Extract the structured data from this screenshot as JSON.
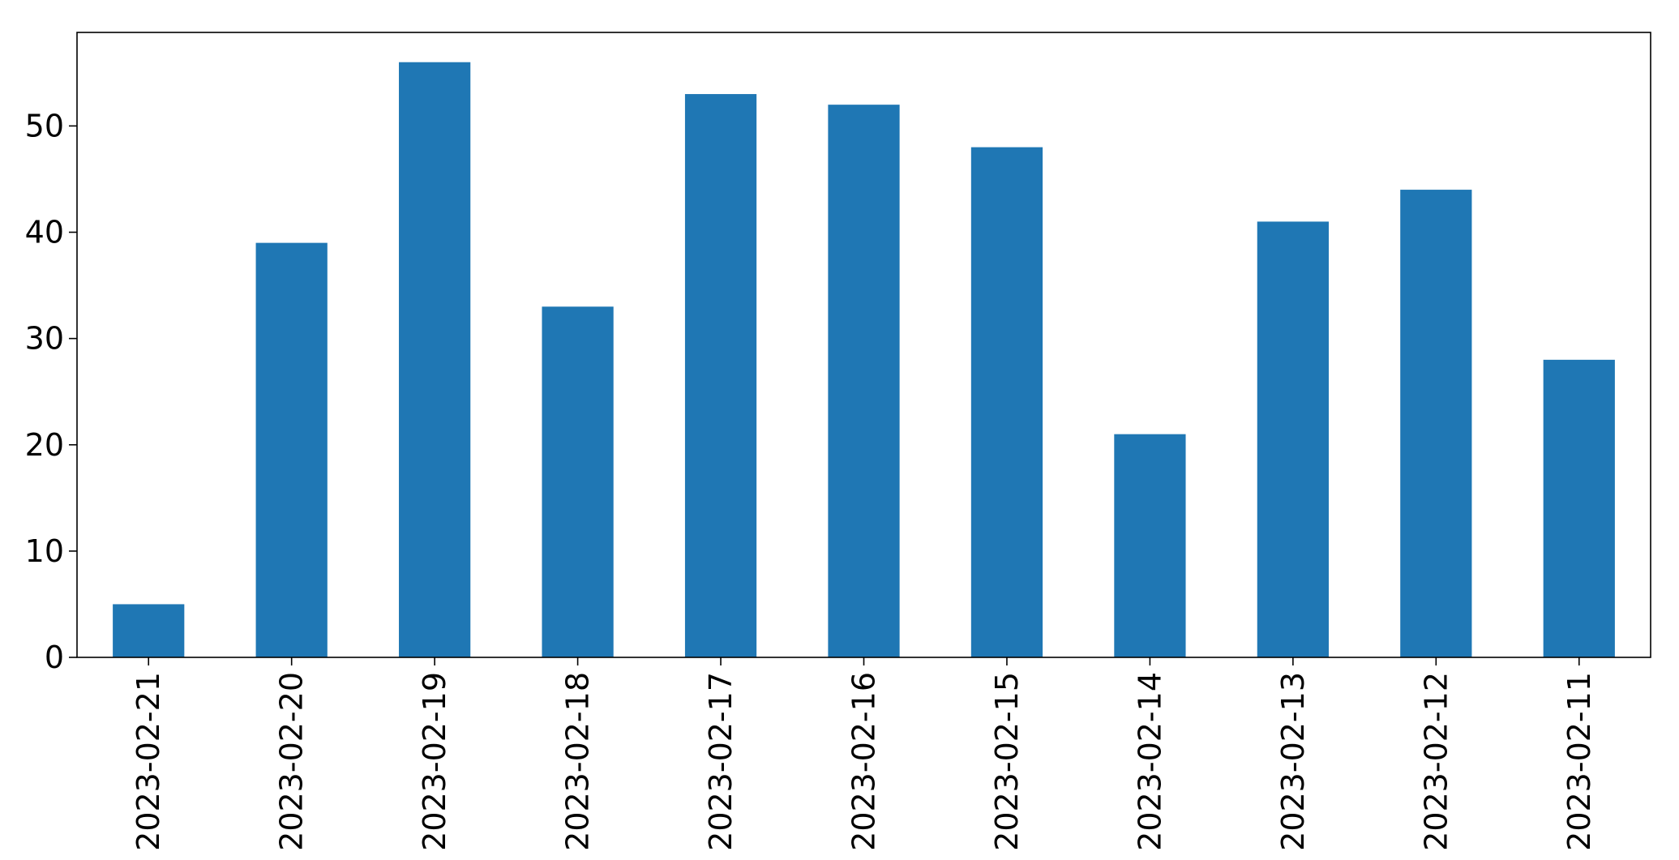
{
  "chart_data": {
    "type": "bar",
    "categories": [
      "2023-02-21",
      "2023-02-20",
      "2023-02-19",
      "2023-02-18",
      "2023-02-17",
      "2023-02-16",
      "2023-02-15",
      "2023-02-14",
      "2023-02-13",
      "2023-02-12",
      "2023-02-11"
    ],
    "values": [
      5,
      39,
      56,
      33,
      53,
      52,
      48,
      21,
      41,
      44,
      28
    ],
    "title": "",
    "xlabel": "",
    "ylabel": "",
    "ylim": [
      0,
      58.8
    ],
    "yticks": [
      0,
      10,
      20,
      30,
      40,
      50
    ],
    "grid": false,
    "legend": "none",
    "bar_color": "#1f77b4",
    "axis_color": "#000000",
    "x_tick_rotation": "vertical"
  }
}
